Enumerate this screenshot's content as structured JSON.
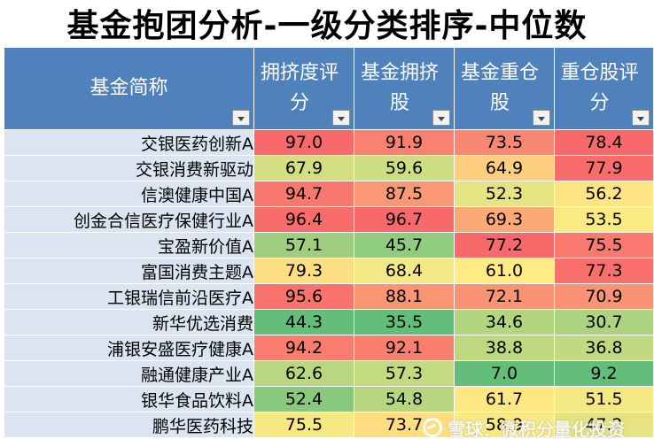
{
  "title": "基金抱团分析-一级分类排序-中位数",
  "columns": [
    {
      "label": "基金简称"
    },
    {
      "label": "拥挤度评分"
    },
    {
      "label": "基金拥挤股"
    },
    {
      "label": "基金重仓股"
    },
    {
      "label": "重仓股评分"
    }
  ],
  "rows": [
    {
      "name": "交银医药创新A",
      "values": [
        "97.0",
        "91.9",
        "73.5",
        "78.4"
      ]
    },
    {
      "name": "交银消费新驱动",
      "values": [
        "67.9",
        "59.6",
        "64.9",
        "77.9"
      ]
    },
    {
      "name": "信澳健康中国A",
      "values": [
        "94.7",
        "87.5",
        "52.3",
        "56.2"
      ]
    },
    {
      "name": "创金合信医疗保健行业A",
      "values": [
        "96.4",
        "96.7",
        "69.3",
        "53.5"
      ]
    },
    {
      "name": "宝盈新价值A",
      "values": [
        "57.1",
        "45.7",
        "77.2",
        "75.5"
      ]
    },
    {
      "name": "富国消费主题A",
      "values": [
        "79.3",
        "68.4",
        "61.0",
        "77.3"
      ]
    },
    {
      "name": "工银瑞信前沿医疗A",
      "values": [
        "95.6",
        "88.1",
        "72.1",
        "70.9"
      ]
    },
    {
      "name": "新华优选消费",
      "values": [
        "44.3",
        "35.5",
        "34.6",
        "30.7"
      ]
    },
    {
      "name": "浦银安盛医疗健康A",
      "values": [
        "94.2",
        "92.1",
        "38.8",
        "36.8"
      ]
    },
    {
      "name": "融通健康产业A",
      "values": [
        "62.6",
        "57.3",
        "7.0",
        "9.2"
      ]
    },
    {
      "name": "银华食品饮料A",
      "values": [
        "52.4",
        "54.8",
        "61.7",
        "51.5"
      ]
    },
    {
      "name": "鹏华医药科技",
      "values": [
        "75.5",
        "73.7",
        "58.9",
        "47.2"
      ]
    }
  ],
  "colors": {
    "header_bg": "#4f81bd",
    "name_bg": "#dbe5f1",
    "scale_low": "#63be7b",
    "scale_mid": "#ffeb84",
    "scale_high": "#f8696b"
  },
  "watermark": "雪球：微积分量化投资"
}
